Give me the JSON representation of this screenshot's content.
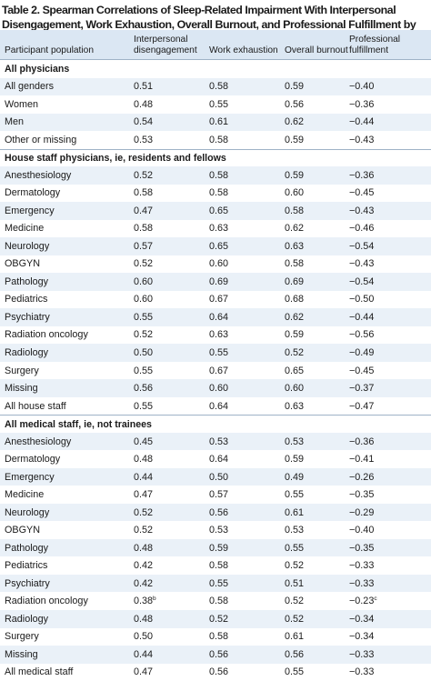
{
  "title": {
    "text": "Table 2. Spearman Correlations of Sleep-Related Impairment With Interpersonal Disengagement, Work Exhaustion, Overall Burnout, and Professional Fulfillment by Gender, Training Status, and Medical Specialty",
    "footnote_marker": "a"
  },
  "columns": [
    "Participant population",
    "Interpersonal disengagement",
    "Work exhaustion",
    "Overall burnout",
    "Professional fulfillment"
  ],
  "rows": [
    {
      "section": "All physicians"
    },
    {
      "label": "All genders",
      "values": [
        "0.51",
        "0.58",
        "0.59",
        "−0.40"
      ]
    },
    {
      "label": "Women",
      "values": [
        "0.48",
        "0.55",
        "0.56",
        "−0.36"
      ]
    },
    {
      "label": "Men",
      "values": [
        "0.54",
        "0.61",
        "0.62",
        "−0.44"
      ]
    },
    {
      "label": "Other or missing",
      "values": [
        "0.53",
        "0.58",
        "0.59",
        "−0.43"
      ]
    },
    {
      "section": "House staff physicians, ie, residents and fellows"
    },
    {
      "label": "Anesthesiology",
      "values": [
        "0.52",
        "0.58",
        "0.59",
        "−0.36"
      ]
    },
    {
      "label": "Dermatology",
      "values": [
        "0.58",
        "0.58",
        "0.60",
        "−0.45"
      ]
    },
    {
      "label": "Emergency",
      "values": [
        "0.47",
        "0.65",
        "0.58",
        "−0.43"
      ]
    },
    {
      "label": "Medicine",
      "values": [
        "0.58",
        "0.63",
        "0.62",
        "−0.46"
      ]
    },
    {
      "label": "Neurology",
      "values": [
        "0.57",
        "0.65",
        "0.63",
        "−0.54"
      ]
    },
    {
      "label": "OBGYN",
      "values": [
        "0.52",
        "0.60",
        "0.58",
        "−0.43"
      ]
    },
    {
      "label": "Pathology",
      "values": [
        "0.60",
        "0.69",
        "0.69",
        "−0.54"
      ]
    },
    {
      "label": "Pediatrics",
      "values": [
        "0.60",
        "0.67",
        "0.68",
        "−0.50"
      ]
    },
    {
      "label": "Psychiatry",
      "values": [
        "0.55",
        "0.64",
        "0.62",
        "−0.44"
      ]
    },
    {
      "label": "Radiation oncology",
      "values": [
        "0.52",
        "0.63",
        "0.59",
        "−0.56"
      ]
    },
    {
      "label": "Radiology",
      "values": [
        "0.50",
        "0.55",
        "0.52",
        "−0.49"
      ]
    },
    {
      "label": "Surgery",
      "values": [
        "0.55",
        "0.67",
        "0.65",
        "−0.45"
      ]
    },
    {
      "label": "Missing",
      "values": [
        "0.56",
        "0.60",
        "0.60",
        "−0.37"
      ]
    },
    {
      "label": "All house staff",
      "values": [
        "0.55",
        "0.64",
        "0.63",
        "−0.47"
      ]
    },
    {
      "section": "All medical staff, ie, not trainees"
    },
    {
      "label": "Anesthesiology",
      "values": [
        "0.45",
        "0.53",
        "0.53",
        "−0.36"
      ]
    },
    {
      "label": "Dermatology",
      "values": [
        "0.48",
        "0.64",
        "0.59",
        "−0.41"
      ]
    },
    {
      "label": "Emergency",
      "values": [
        "0.44",
        "0.50",
        "0.49",
        "−0.26"
      ]
    },
    {
      "label": "Medicine",
      "values": [
        "0.47",
        "0.57",
        "0.55",
        "−0.35"
      ]
    },
    {
      "label": "Neurology",
      "values": [
        "0.52",
        "0.56",
        "0.61",
        "−0.29"
      ]
    },
    {
      "label": "OBGYN",
      "values": [
        "0.52",
        "0.53",
        "0.53",
        "−0.40"
      ]
    },
    {
      "label": "Pathology",
      "values": [
        "0.48",
        "0.59",
        "0.55",
        "−0.35"
      ]
    },
    {
      "label": "Pediatrics",
      "values": [
        "0.42",
        "0.58",
        "0.52",
        "−0.33"
      ]
    },
    {
      "label": "Psychiatry",
      "values": [
        "0.42",
        "0.55",
        "0.51",
        "−0.33"
      ]
    },
    {
      "label": "Radiation oncology",
      "values": [
        "0.38",
        "0.58",
        "0.52",
        "−0.23"
      ],
      "footnotes": [
        "b",
        null,
        null,
        "c"
      ]
    },
    {
      "label": "Radiology",
      "values": [
        "0.48",
        "0.52",
        "0.52",
        "−0.34"
      ]
    },
    {
      "label": "Surgery",
      "values": [
        "0.50",
        "0.58",
        "0.61",
        "−0.34"
      ]
    },
    {
      "label": "Missing",
      "values": [
        "0.44",
        "0.56",
        "0.56",
        "−0.33"
      ]
    },
    {
      "label": "All medical staff",
      "values": [
        "0.47",
        "0.56",
        "0.55",
        "−0.33"
      ]
    }
  ]
}
